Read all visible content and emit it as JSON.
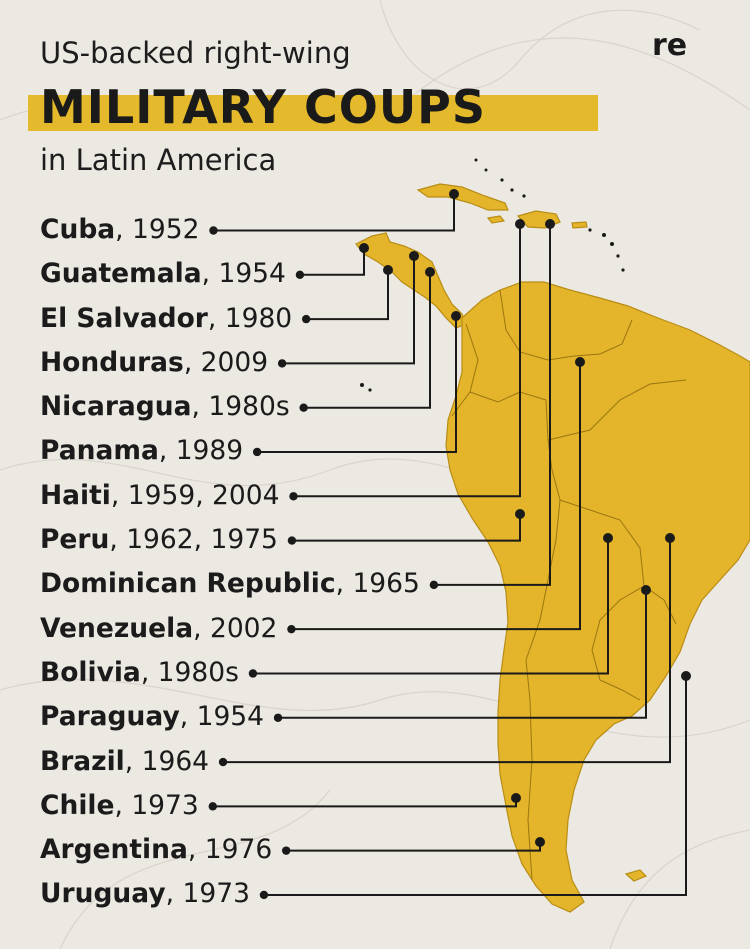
{
  "header": {
    "subtitle": "US-backed right-wing",
    "title": "MILITARY COUPS",
    "subtitle2": "in Latin America",
    "logo": "re"
  },
  "colors": {
    "background": "#ece8e2",
    "land": "#e4b52a",
    "title_band": "#e5b92c",
    "lines": "#1a1a1a"
  },
  "coups": [
    {
      "country": "Cuba",
      "years": ", 1952"
    },
    {
      "country": "Guatemala",
      "years": ", 1954"
    },
    {
      "country": "El Salvador",
      "years": ", 1980"
    },
    {
      "country": "Honduras",
      "years": ", 2009"
    },
    {
      "country": "Nicaragua",
      "years": ", 1980s"
    },
    {
      "country": "Panama",
      "years": ", 1989"
    },
    {
      "country": "Haiti",
      "years": ", 1959, 2004"
    },
    {
      "country": "Peru",
      "years": ", 1962, 1975"
    },
    {
      "country": "Dominican Republic",
      "years": ", 1965"
    },
    {
      "country": "Venezuela",
      "years": ", 2002"
    },
    {
      "country": "Bolivia",
      "years": ", 1980s"
    },
    {
      "country": "Paraguay",
      "years": ", 1954"
    },
    {
      "country": "Brazil",
      "years": ", 1964"
    },
    {
      "country": "Chile",
      "years": ", 1973"
    },
    {
      "country": "Argentina",
      "years": ", 1976"
    },
    {
      "country": "Uruguay",
      "years": ", 1973"
    }
  ]
}
